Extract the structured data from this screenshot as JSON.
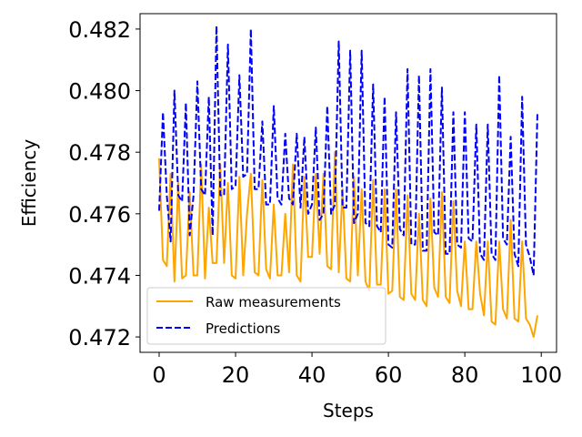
{
  "chart_data": {
    "type": "line",
    "xlabel": "Steps",
    "ylabel": "Efficiency",
    "xlim": [
      -5,
      104
    ],
    "ylim": [
      0.4715,
      0.4825
    ],
    "x_ticks": [
      0,
      20,
      40,
      60,
      80,
      100
    ],
    "y_ticks": [
      0.472,
      0.474,
      0.476,
      0.478,
      0.48,
      0.482
    ],
    "x_tick_labels": [
      "0",
      "20",
      "40",
      "60",
      "80",
      "100"
    ],
    "y_tick_labels": [
      "0.472",
      "0.474",
      "0.476",
      "0.478",
      "0.480",
      "0.482"
    ],
    "legend_position": "lower-left",
    "grid": false,
    "series": [
      {
        "name": "Raw measurements",
        "color": "#FFA500",
        "style": "solid",
        "x": [
          0,
          1,
          2,
          3,
          4,
          5,
          6,
          7,
          8,
          9,
          10,
          11,
          12,
          13,
          14,
          15,
          16,
          17,
          18,
          19,
          20,
          21,
          22,
          23,
          24,
          25,
          26,
          27,
          28,
          29,
          30,
          31,
          32,
          33,
          34,
          35,
          36,
          37,
          38,
          39,
          40,
          41,
          42,
          43,
          44,
          45,
          46,
          47,
          48,
          49,
          50,
          51,
          52,
          53,
          54,
          55,
          56,
          57,
          58,
          59,
          60,
          61,
          62,
          63,
          64,
          65,
          66,
          67,
          68,
          69,
          70,
          71,
          72,
          73,
          74,
          75,
          76,
          77,
          78,
          79,
          80,
          81,
          82,
          83,
          84,
          85,
          86,
          87,
          88,
          89,
          90,
          91,
          92,
          93,
          94,
          95,
          96,
          97,
          98,
          99
        ],
        "values": [
          0.4778,
          0.4745,
          0.4743,
          0.4773,
          0.4738,
          0.477,
          0.4739,
          0.474,
          0.4767,
          0.474,
          0.474,
          0.4776,
          0.4739,
          0.4762,
          0.4744,
          0.4744,
          0.4776,
          0.4744,
          0.477,
          0.474,
          0.4739,
          0.4772,
          0.474,
          0.476,
          0.4773,
          0.4741,
          0.474,
          0.4771,
          0.4742,
          0.4739,
          0.4763,
          0.474,
          0.474,
          0.476,
          0.4741,
          0.4776,
          0.474,
          0.4738,
          0.4772,
          0.4746,
          0.4746,
          0.4773,
          0.4747,
          0.4773,
          0.4743,
          0.4742,
          0.478,
          0.4741,
          0.4768,
          0.4739,
          0.4738,
          0.4772,
          0.474,
          0.4768,
          0.4738,
          0.4735,
          0.4771,
          0.4737,
          0.4737,
          0.4768,
          0.4734,
          0.4735,
          0.4768,
          0.4733,
          0.4732,
          0.4766,
          0.4734,
          0.4732,
          0.476,
          0.4732,
          0.473,
          0.4765,
          0.4736,
          0.4733,
          0.4767,
          0.4733,
          0.4731,
          0.4764,
          0.4735,
          0.473,
          0.4751,
          0.4729,
          0.4729,
          0.4751,
          0.4734,
          0.4727,
          0.4751,
          0.4725,
          0.4724,
          0.4751,
          0.4729,
          0.4726,
          0.4758,
          0.4726,
          0.4725,
          0.4751,
          0.4726,
          0.4724,
          0.472,
          0.4727
        ]
      },
      {
        "name": "Predictions",
        "color": "#0000FF",
        "style": "dashed",
        "x": [
          0,
          1,
          2,
          3,
          4,
          5,
          6,
          7,
          8,
          9,
          10,
          11,
          12,
          13,
          14,
          15,
          16,
          17,
          18,
          19,
          20,
          21,
          22,
          23,
          24,
          25,
          26,
          27,
          28,
          29,
          30,
          31,
          32,
          33,
          34,
          35,
          36,
          37,
          38,
          39,
          40,
          41,
          42,
          43,
          44,
          45,
          46,
          47,
          48,
          49,
          50,
          51,
          52,
          53,
          54,
          55,
          56,
          57,
          58,
          59,
          60,
          61,
          62,
          63,
          64,
          65,
          66,
          67,
          68,
          69,
          70,
          71,
          72,
          73,
          74,
          75,
          76,
          77,
          78,
          79,
          80,
          81,
          82,
          83,
          84,
          85,
          86,
          87,
          88,
          89,
          90,
          91,
          92,
          93,
          94,
          95,
          96,
          97,
          98,
          99
        ],
        "values": [
          0.4761,
          0.4793,
          0.4766,
          0.4751,
          0.48,
          0.4766,
          0.4764,
          0.4796,
          0.4753,
          0.4766,
          0.4803,
          0.4768,
          0.4766,
          0.4798,
          0.4753,
          0.4821,
          0.4766,
          0.4766,
          0.4815,
          0.4768,
          0.4769,
          0.4805,
          0.4772,
          0.4773,
          0.482,
          0.4768,
          0.4768,
          0.479,
          0.4763,
          0.4763,
          0.4795,
          0.4765,
          0.4763,
          0.4786,
          0.4765,
          0.4763,
          0.4786,
          0.4762,
          0.4785,
          0.476,
          0.4763,
          0.4788,
          0.4758,
          0.476,
          0.4795,
          0.476,
          0.4763,
          0.4816,
          0.4762,
          0.4762,
          0.4813,
          0.4757,
          0.476,
          0.4813,
          0.4757,
          0.4756,
          0.4802,
          0.4756,
          0.4754,
          0.4798,
          0.475,
          0.4749,
          0.4793,
          0.4755,
          0.4753,
          0.4807,
          0.475,
          0.475,
          0.4805,
          0.4748,
          0.4748,
          0.4807,
          0.4754,
          0.4753,
          0.4801,
          0.4747,
          0.4747,
          0.4793,
          0.475,
          0.4749,
          0.4793,
          0.4752,
          0.4751,
          0.4789,
          0.4747,
          0.4745,
          0.4789,
          0.4747,
          0.4745,
          0.4805,
          0.4752,
          0.475,
          0.4785,
          0.4747,
          0.4743,
          0.4798,
          0.475,
          0.4746,
          0.474,
          0.4793
        ]
      }
    ]
  }
}
